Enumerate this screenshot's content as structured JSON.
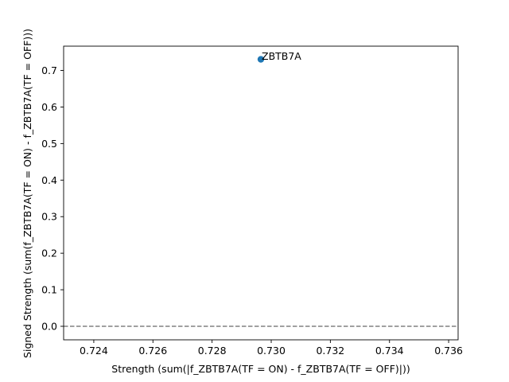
{
  "chart_data": {
    "type": "scatter",
    "xlabel": "Strength (sum(|f_ZBTB7A(TF = ON) - f_ZBTB7A(TF = OFF)|))",
    "ylabel": "Signed Strength (sum(f_ZBTB7A(TF = ON) - f_ZBTB7A(TF = OFF)))",
    "xlim": [
      0.72298,
      0.73632
    ],
    "ylim": [
      -0.037,
      0.7665
    ],
    "xticks": [
      0.724,
      0.726,
      0.728,
      0.73,
      0.732,
      0.734,
      0.736
    ],
    "xtick_labels": [
      "0.724",
      "0.726",
      "0.728",
      "0.730",
      "0.732",
      "0.734",
      "0.736"
    ],
    "yticks": [
      0.0,
      0.1,
      0.2,
      0.3,
      0.4,
      0.5,
      0.6,
      0.7
    ],
    "ytick_labels": [
      "0.0",
      "0.1",
      "0.2",
      "0.3",
      "0.4",
      "0.5",
      "0.6",
      "0.7"
    ],
    "points": [
      {
        "x": 0.72965,
        "y": 0.7305,
        "label": "ZBTB7A"
      }
    ],
    "reference_line": {
      "y": 0.0,
      "style": "dashed",
      "color": "#808080"
    },
    "point_color": "#1f77b4",
    "grid": false
  }
}
